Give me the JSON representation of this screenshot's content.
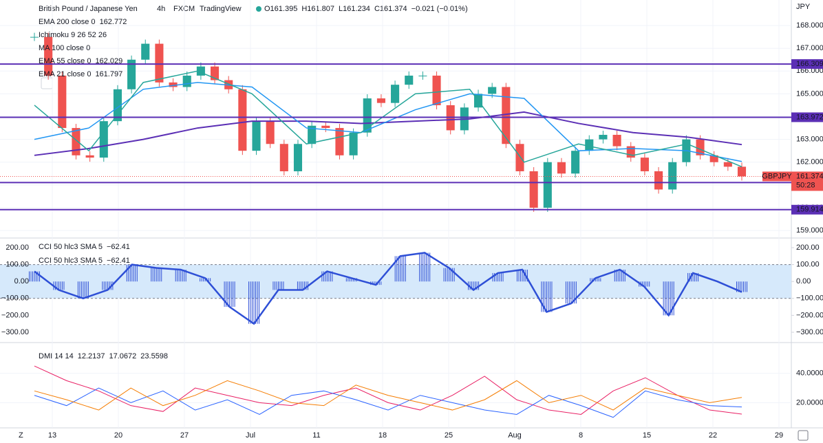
{
  "header": {
    "symbol": "British Pound / Japanese Yen",
    "interval": "4h",
    "source": "FXCM",
    "platform": "TradingView",
    "ohlc": [
      "O161.395",
      "H161.807",
      "L161.234",
      "C161.374",
      "−0.021 (−0.01%)"
    ],
    "currency": "JPY"
  },
  "price_pane": {
    "type": "candlestick",
    "closes": [
      167.5,
      165.8,
      163.5,
      162.3,
      162.2,
      163.8,
      165.2,
      166.5,
      167.2,
      165.5,
      165.3,
      165.8,
      166.2,
      165.6,
      165.2,
      162.5,
      163.8,
      162.8,
      161.6,
      162.8,
      163.6,
      163.5,
      162.3,
      163.3,
      164.8,
      164.6,
      165.4,
      165.8,
      165.8,
      164.5,
      163.4,
      164.4,
      165.0,
      165.3,
      162.8,
      161.6,
      160.0,
      162.0,
      161.5,
      162.5,
      163.0,
      163.2,
      162.7,
      162.2,
      161.6,
      160.8,
      162.0,
      163.0,
      162.3,
      162.0,
      161.8,
      161.374
    ],
    "up_color": "#26a69a",
    "down_color": "#ef5350",
    "ylim": [
      158.7,
      169.12
    ],
    "yticks": [
      {
        "value": 168,
        "label": "168.000"
      },
      {
        "value": 167,
        "label": "167.000"
      },
      {
        "value": 166,
        "label": "166.000"
      },
      {
        "value": 165,
        "label": "165.000"
      },
      {
        "value": 164,
        "label": "164.000"
      },
      {
        "value": 163,
        "label": "163.000"
      },
      {
        "value": 162,
        "label": "162.000"
      },
      {
        "value": 161,
        "label": "161.000"
      },
      {
        "value": 160,
        "label": "160.000"
      },
      {
        "value": 159,
        "label": "159.000"
      }
    ],
    "levels": [
      166.309,
      163.972,
      161.104,
      159.914
    ],
    "level_color": "#5b2fb5",
    "symbol_label": "GBPJPY",
    "last_price": 161.374,
    "countdown": "50:28",
    "indicators": [
      {
        "name": "EMA 200 close 0",
        "color": "#5b2fb5",
        "values": [
          162.3,
          162.6,
          163.0,
          163.5,
          163.8,
          163.8,
          163.7,
          163.8,
          163.9,
          164.2,
          163.7,
          163.3,
          163.1,
          162.772
        ]
      },
      {
        "name": "EMA 55 close 0",
        "color": "#2196f3",
        "values": [
          163.0,
          163.5,
          165.2,
          165.5,
          165.3,
          163.5,
          163.3,
          164.3,
          165.0,
          164.8,
          162.5,
          162.6,
          162.5,
          162.029
        ]
      },
      {
        "name": "EMA 21 close 0",
        "color": "#26a69a",
        "values": [
          164.5,
          162.5,
          165.5,
          166.0,
          165.0,
          162.8,
          163.3,
          165.0,
          165.2,
          162.0,
          162.8,
          162.3,
          162.8,
          161.797
        ]
      }
    ],
    "hidden_legend": [
      "Ichimoku 9 26 52 26",
      "MA 100 close 0"
    ]
  },
  "cci_pane": {
    "type": "histogram-line",
    "legend": "CCI 50 hlc3 SMA 5",
    "value_label": "−62.41",
    "color": "#2e4fd6",
    "band_color": "#d6e9fb",
    "values": [
      60,
      -50,
      -100,
      -50,
      100,
      80,
      70,
      20,
      -150,
      -250,
      -50,
      -50,
      60,
      20,
      -20,
      150,
      170,
      80,
      -50,
      50,
      70,
      -180,
      -130,
      20,
      70,
      -30,
      -200,
      50,
      0,
      -62.41
    ],
    "ylim": [
      -357,
      253
    ],
    "band": [
      -100,
      100
    ],
    "yticks": [
      {
        "value": 200,
        "label": "200.00"
      },
      {
        "value": 100,
        "label": "100.00"
      },
      {
        "value": 0,
        "label": "0.00"
      },
      {
        "value": -100,
        "label": "−100.00"
      },
      {
        "value": -200,
        "label": "−200.00"
      },
      {
        "value": -300,
        "label": "−300.00"
      }
    ]
  },
  "dmi_pane": {
    "type": "line",
    "legend": "DMI 14 14",
    "ylim": [
      3.3,
      60.5
    ],
    "yticks": [
      {
        "value": 40,
        "label": "40.0000"
      },
      {
        "value": 20,
        "label": "20.0000"
      }
    ],
    "series": [
      {
        "color": "#e91e63",
        "values": [
          45,
          35,
          28,
          18,
          14,
          30,
          25,
          20,
          18,
          25,
          30,
          20,
          15,
          25,
          38,
          22,
          15,
          12,
          28,
          37,
          25,
          15,
          12.2137
        ]
      },
      {
        "color": "#2962ff",
        "values": [
          25,
          18,
          30,
          20,
          28,
          15,
          22,
          12,
          25,
          28,
          22,
          15,
          25,
          20,
          15,
          12,
          25,
          18,
          10,
          28,
          22,
          18,
          17.0672
        ]
      },
      {
        "color": "#f57c00",
        "values": [
          28,
          22,
          15,
          30,
          18,
          25,
          35,
          28,
          20,
          18,
          32,
          25,
          20,
          15,
          22,
          35,
          20,
          25,
          15,
          30,
          25,
          20,
          23.5598
        ]
      }
    ]
  },
  "x_labels": [
    "13",
    "20",
    "27",
    "Jul",
    "11",
    "18",
    "25",
    "Aug",
    "8",
    "15",
    "22",
    "29"
  ]
}
